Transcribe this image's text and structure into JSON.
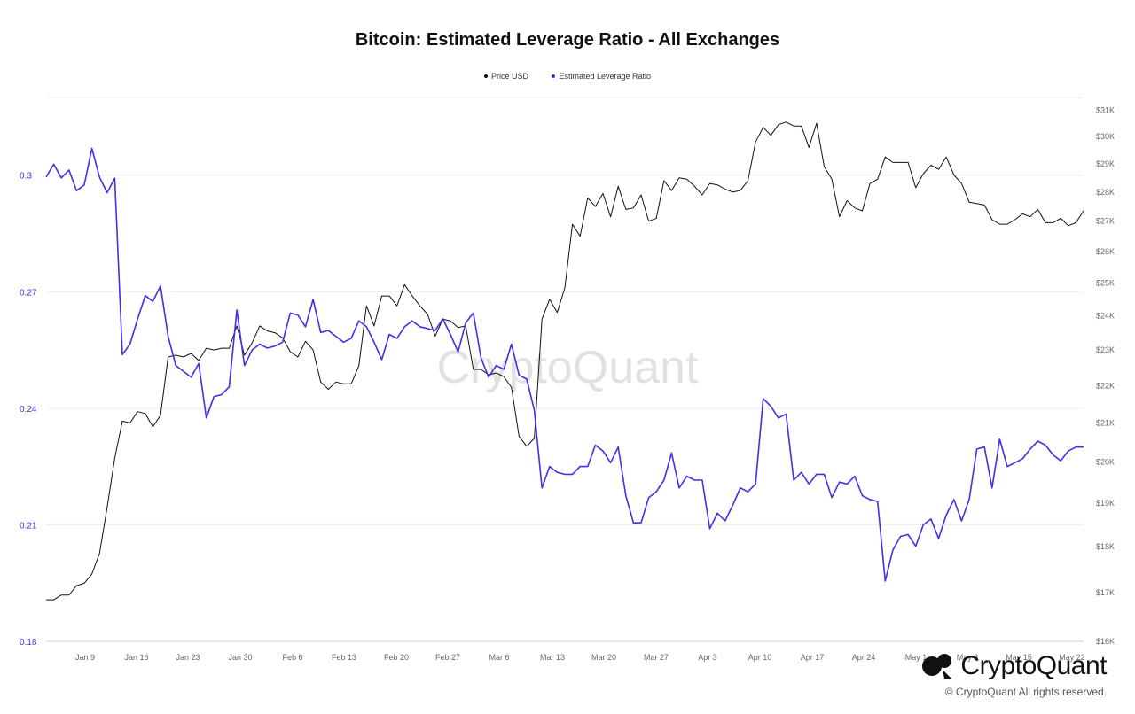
{
  "chart_data": {
    "type": "line",
    "title": "Bitcoin: Estimated Leverage Ratio - All Exchanges",
    "legend": [
      {
        "name": "Price USD",
        "color": "#111111"
      },
      {
        "name": "Estimated Leverage Ratio",
        "color": "#4b2bea"
      }
    ],
    "legend_position": "top-center",
    "grid": true,
    "x_tick_labels": [
      "Jan 9",
      "Jan 16",
      "Jan 23",
      "Jan 30",
      "Feb 6",
      "Feb 13",
      "Feb 20",
      "Feb 27",
      "Mar 6",
      "Mar 13",
      "Mar 20",
      "Mar 27",
      "Apr 3",
      "Apr 10",
      "Apr 17",
      "Apr 24",
      "May 1",
      "May 8",
      "May 15",
      "May 22"
    ],
    "y_left_ticks": [
      "0.18",
      "0.21",
      "0.24",
      "0.27",
      "0.3"
    ],
    "y_left_range": [
      0.18,
      0.32
    ],
    "y_right_ticks": [
      "$16K",
      "$17K",
      "$18K",
      "$19K",
      "$20K",
      "$21K",
      "$22K",
      "$23K",
      "$24K",
      "$25K",
      "$26K",
      "$27K",
      "$28K",
      "$29K",
      "$30K",
      "$31K"
    ],
    "y_right_range": [
      16000,
      31500
    ],
    "y_right_scale": "log",
    "series": [
      {
        "name": "Price USD",
        "axis": "right",
        "color": "#111111",
        "values": [
          16850,
          16850,
          16950,
          16950,
          17150,
          17200,
          17400,
          17850,
          18900,
          20100,
          21050,
          21000,
          21300,
          21250,
          20900,
          21200,
          22800,
          22850,
          22800,
          22900,
          22700,
          23050,
          23000,
          23050,
          23050,
          23700,
          22850,
          23200,
          23700,
          23550,
          23500,
          23350,
          22950,
          22800,
          23250,
          23000,
          22100,
          21900,
          22100,
          22050,
          22050,
          22550,
          24300,
          23700,
          24600,
          24600,
          24300,
          24950,
          24600,
          24300,
          24050,
          23400,
          23900,
          23850,
          23650,
          23700,
          22450,
          22450,
          22300,
          22350,
          22250,
          21950,
          20650,
          20400,
          20600,
          23900,
          24500,
          24100,
          24850,
          26900,
          26500,
          27800,
          27500,
          27950,
          27150,
          28200,
          27400,
          27450,
          27900,
          27000,
          27100,
          28400,
          28050,
          28500,
          28450,
          28200,
          27900,
          28300,
          28250,
          28100,
          28000,
          28050,
          28400,
          29800,
          30350,
          30050,
          30450,
          30550,
          30400,
          30400,
          29600,
          30500,
          28900,
          28450,
          27150,
          27700,
          27450,
          27350,
          28300,
          28450,
          29250,
          29050,
          29050,
          29050,
          28150,
          28650,
          28950,
          28800,
          29250,
          28600,
          28300,
          27650,
          27600,
          27550,
          27050,
          26900,
          26900,
          27050,
          27250,
          27150,
          27400,
          26950,
          26950,
          27100,
          26850,
          26950,
          27350
        ]
      },
      {
        "name": "Estimated Leverage Ratio",
        "axis": "left",
        "color": "#4b2bea",
        "values": [
          0.2995,
          0.3028,
          0.2993,
          0.3013,
          0.296,
          0.2975,
          0.3069,
          0.2995,
          0.2955,
          0.2992,
          0.2538,
          0.2565,
          0.263,
          0.269,
          0.2675,
          0.2715,
          0.2585,
          0.251,
          0.2495,
          0.248,
          0.2515,
          0.2375,
          0.243,
          0.2435,
          0.2455,
          0.2653,
          0.251,
          0.255,
          0.2565,
          0.2555,
          0.256,
          0.257,
          0.2645,
          0.264,
          0.261,
          0.268,
          0.2595,
          0.26,
          0.2585,
          0.257,
          0.258,
          0.2625,
          0.261,
          0.257,
          0.2525,
          0.259,
          0.258,
          0.261,
          0.2625,
          0.261,
          0.2605,
          0.26,
          0.263,
          0.259,
          0.2545,
          0.262,
          0.2645,
          0.253,
          0.248,
          0.251,
          0.25,
          0.2565,
          0.2485,
          0.2475,
          0.2395,
          0.2195,
          0.225,
          0.2235,
          0.223,
          0.223,
          0.225,
          0.225,
          0.2305,
          0.229,
          0.226,
          0.23,
          0.2175,
          0.2105,
          0.2105,
          0.217,
          0.2185,
          0.2215,
          0.2285,
          0.2195,
          0.2225,
          0.2215,
          0.2215,
          0.209,
          0.213,
          0.211,
          0.215,
          0.2195,
          0.2185,
          0.2205,
          0.2425,
          0.2405,
          0.2375,
          0.2385,
          0.2215,
          0.2235,
          0.2205,
          0.223,
          0.223,
          0.217,
          0.221,
          0.2205,
          0.2225,
          0.2175,
          0.2165,
          0.216,
          0.1955,
          0.2035,
          0.207,
          0.2075,
          0.2045,
          0.21,
          0.2115,
          0.2065,
          0.2125,
          0.2165,
          0.211,
          0.2165,
          0.2295,
          0.23,
          0.2195,
          0.232,
          0.225,
          0.226,
          0.227,
          0.2295,
          0.2315,
          0.2305,
          0.228,
          0.2265,
          0.229,
          0.23,
          0.23
        ]
      }
    ]
  },
  "watermark": "CryptoQuant",
  "brand": {
    "name": "CryptoQuant",
    "copyright": "© CryptoQuant All rights reserved."
  }
}
